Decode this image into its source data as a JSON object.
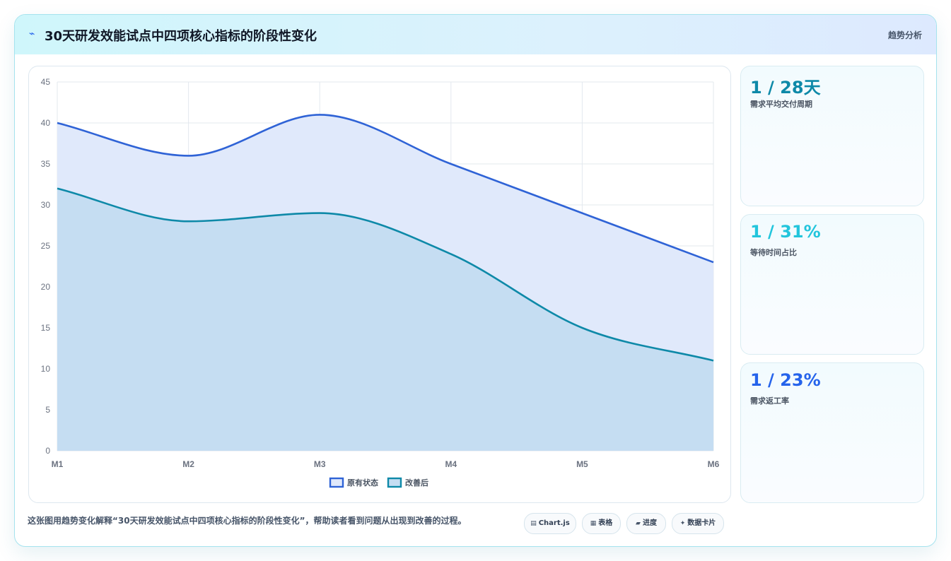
{
  "header": {
    "icon": "chart-icon",
    "title": "30天研发效能试点中四项核心指标的阶段性变化",
    "tag": "趋势分析"
  },
  "kpis": [
    {
      "value": "1 / 28天",
      "label": "需求平均交付周期",
      "color": "#0e89a8"
    },
    {
      "value": "1 / 31%",
      "label": "等待时间占比",
      "color": "#22c5dc"
    },
    {
      "value": "1 / 23%",
      "label": "需求返工率",
      "color": "#2563eb"
    }
  ],
  "footer": {
    "text": "这张图用趋势变化解释“30天研发效能试点中四项核心指标的阶段性变化”，帮助读者看到问题从出现到改善的过程。",
    "pills": [
      {
        "icon": "table-icon",
        "label": "Chart.js"
      },
      {
        "icon": "grid-icon",
        "label": "表格"
      },
      {
        "icon": "progress-icon",
        "label": "进度"
      },
      {
        "icon": "sparkle-icon",
        "label": "数据卡片"
      }
    ]
  },
  "chart_data": {
    "type": "area",
    "categories": [
      "M1",
      "M2",
      "M3",
      "M4",
      "M5",
      "M6"
    ],
    "ylim": [
      0,
      45
    ],
    "yticks": [
      0,
      5,
      10,
      15,
      20,
      25,
      30,
      35,
      40,
      45
    ],
    "grid": true,
    "legend_position": "bottom",
    "series": [
      {
        "name": "原有状态",
        "values": [
          40,
          36,
          41,
          35,
          29,
          23
        ],
        "color": "#2f63d6",
        "fill": "#e0e9fb"
      },
      {
        "name": "改善后",
        "values": [
          32,
          28,
          29,
          24,
          15,
          11
        ],
        "color": "#0e89a8",
        "fill": "#c5ddf2"
      }
    ]
  }
}
